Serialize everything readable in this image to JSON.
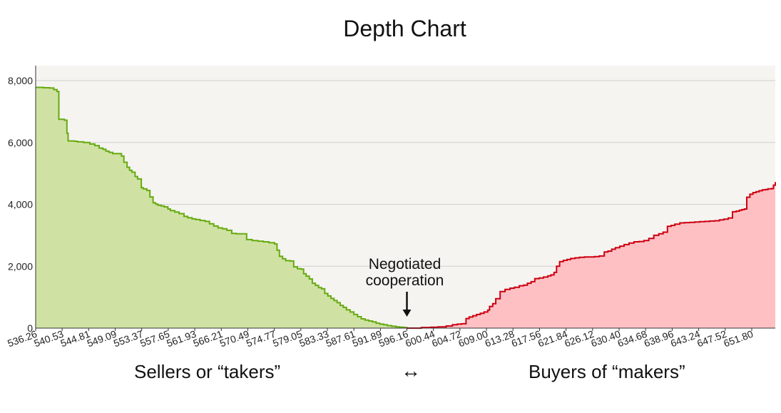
{
  "chart_data": {
    "type": "area",
    "title": "Depth Chart",
    "xlabel": "",
    "ylabel": "",
    "ylim": [
      0,
      8500
    ],
    "xlim": [
      536.26,
      655.6
    ],
    "yticks": [
      0,
      2000,
      4000,
      6000,
      8000
    ],
    "ytick_labels": [
      "0",
      "2,000",
      "4,000",
      "6,000",
      "8,000"
    ],
    "xtick_labels": [
      "536.26",
      "540.53",
      "544.81",
      "549.09",
      "553.37",
      "557.65",
      "561.93",
      "566.21",
      "570.49",
      "574.77",
      "579.05",
      "583.33",
      "587.61",
      "591.89",
      "596.16",
      "600.44",
      "604.72",
      "609.00",
      "613.28",
      "617.56",
      "621.84",
      "626.12",
      "630.40",
      "634.68",
      "638.96",
      "643.24",
      "647.52",
      "651.80"
    ],
    "grid": true,
    "series": [
      {
        "name": "",
        "color": "#66aa11",
        "fill": "#d0e2a3",
        "x": [
          536.26,
          537.5,
          538.5,
          539.2,
          539.7,
          540.0,
          540.9,
          541.3,
          541.5,
          542.5,
          543.0,
          544.0,
          545.0,
          545.8,
          546.5,
          547.1,
          547.6,
          548.1,
          548.7,
          549.3,
          550.1,
          550.5,
          551.0,
          551.4,
          551.8,
          552.3,
          552.7,
          553.3,
          553.6,
          554.2,
          554.7,
          555.2,
          555.6,
          556.0,
          556.5,
          557.0,
          557.6,
          558.0,
          558.7,
          559.4,
          560.2,
          560.8,
          561.5,
          562.1,
          562.8,
          563.6,
          564.3,
          565.0,
          565.7,
          566.4,
          567.1,
          567.9,
          568.6,
          569.3,
          570.3,
          571.2,
          572.1,
          573.0,
          573.9,
          574.8,
          575.2,
          575.6,
          576.1,
          576.6,
          577.3,
          577.9,
          578.5,
          579.1,
          579.5,
          579.9,
          580.4,
          580.9,
          581.4,
          581.9,
          582.4,
          582.9,
          583.4,
          583.9,
          584.4,
          584.9,
          585.4,
          585.9,
          586.4,
          587.0,
          587.6,
          588.2,
          588.8,
          589.4,
          590.0,
          590.6,
          591.2,
          591.8,
          592.4,
          593.0,
          593.7,
          594.4,
          595.0,
          595.7,
          596.16
        ],
        "y": [
          7780,
          7770,
          7760,
          7710,
          7650,
          6750,
          6720,
          6300,
          6050,
          6040,
          6020,
          6000,
          5950,
          5900,
          5820,
          5780,
          5720,
          5680,
          5640,
          5640,
          5560,
          5360,
          5200,
          5100,
          5040,
          4900,
          4820,
          4540,
          4500,
          4450,
          4240,
          4050,
          4010,
          3970,
          3950,
          3920,
          3850,
          3800,
          3750,
          3700,
          3610,
          3570,
          3530,
          3510,
          3480,
          3450,
          3370,
          3300,
          3240,
          3210,
          3160,
          3060,
          3050,
          3050,
          2860,
          2830,
          2810,
          2790,
          2760,
          2720,
          2520,
          2320,
          2240,
          2180,
          2170,
          1980,
          1920,
          1910,
          1760,
          1680,
          1590,
          1450,
          1380,
          1310,
          1270,
          1120,
          1040,
          960,
          890,
          820,
          730,
          670,
          590,
          520,
          440,
          370,
          300,
          260,
          230,
          200,
          160,
          130,
          110,
          80,
          60,
          40,
          30,
          20,
          0
        ]
      },
      {
        "name": "",
        "color": "#cc0011",
        "fill": "#ffc0c4",
        "x": [
          596.16,
          597.0,
          598.5,
          600.0,
          601.2,
          602.5,
          603.5,
          604.3,
          605.0,
          605.7,
          606.2,
          606.8,
          607.4,
          608.0,
          608.6,
          609.2,
          609.5,
          610.0,
          610.5,
          611.2,
          612.0,
          612.8,
          613.5,
          614.3,
          615.0,
          615.6,
          616.2,
          616.8,
          617.5,
          618.2,
          618.9,
          619.4,
          619.9,
          620.3,
          620.8,
          621.4,
          622.0,
          622.6,
          623.3,
          624.0,
          624.8,
          625.6,
          626.4,
          627.2,
          628.0,
          628.6,
          629.2,
          629.8,
          630.5,
          631.2,
          632.0,
          632.8,
          633.6,
          634.4,
          635.2,
          636.0,
          636.8,
          637.5,
          638.2,
          638.8,
          639.4,
          640.2,
          641.0,
          641.8,
          642.6,
          643.4,
          644.2,
          645.0,
          645.8,
          646.6,
          647.3,
          648.0,
          648.7,
          649.3,
          649.8,
          650.2,
          650.6,
          651.0,
          651.5,
          652.0,
          652.5,
          653.0,
          653.5,
          654.0,
          654.4,
          655.0,
          655.3,
          655.6
        ],
        "y": [
          0,
          0,
          20,
          30,
          40,
          70,
          110,
          130,
          140,
          310,
          360,
          400,
          440,
          480,
          520,
          580,
          700,
          790,
          950,
          1180,
          1250,
          1290,
          1320,
          1370,
          1390,
          1450,
          1500,
          1600,
          1620,
          1650,
          1690,
          1720,
          1800,
          2000,
          2150,
          2190,
          2220,
          2250,
          2270,
          2290,
          2300,
          2300,
          2310,
          2330,
          2460,
          2490,
          2550,
          2600,
          2650,
          2700,
          2750,
          2790,
          2800,
          2830,
          2900,
          3000,
          3050,
          3100,
          3290,
          3320,
          3360,
          3400,
          3410,
          3420,
          3430,
          3440,
          3450,
          3460,
          3470,
          3500,
          3520,
          3560,
          3760,
          3780,
          3810,
          3830,
          3850,
          4230,
          4330,
          4380,
          4410,
          4440,
          4470,
          4480,
          4500,
          4510,
          4620,
          4720
        ]
      }
    ],
    "annotations": [
      {
        "text_lines": [
          "Negotiated",
          "cooperation"
        ],
        "arrow": "down",
        "x": 596.16
      }
    ]
  },
  "labels": {
    "sellers": "Sellers or “takers”",
    "buyers": "Buyers of “makers”",
    "between_arrow": "↔"
  },
  "colors": {
    "plot_background": "#f5f4f0",
    "grid": "#cfcfcf",
    "axis": "#333333"
  }
}
